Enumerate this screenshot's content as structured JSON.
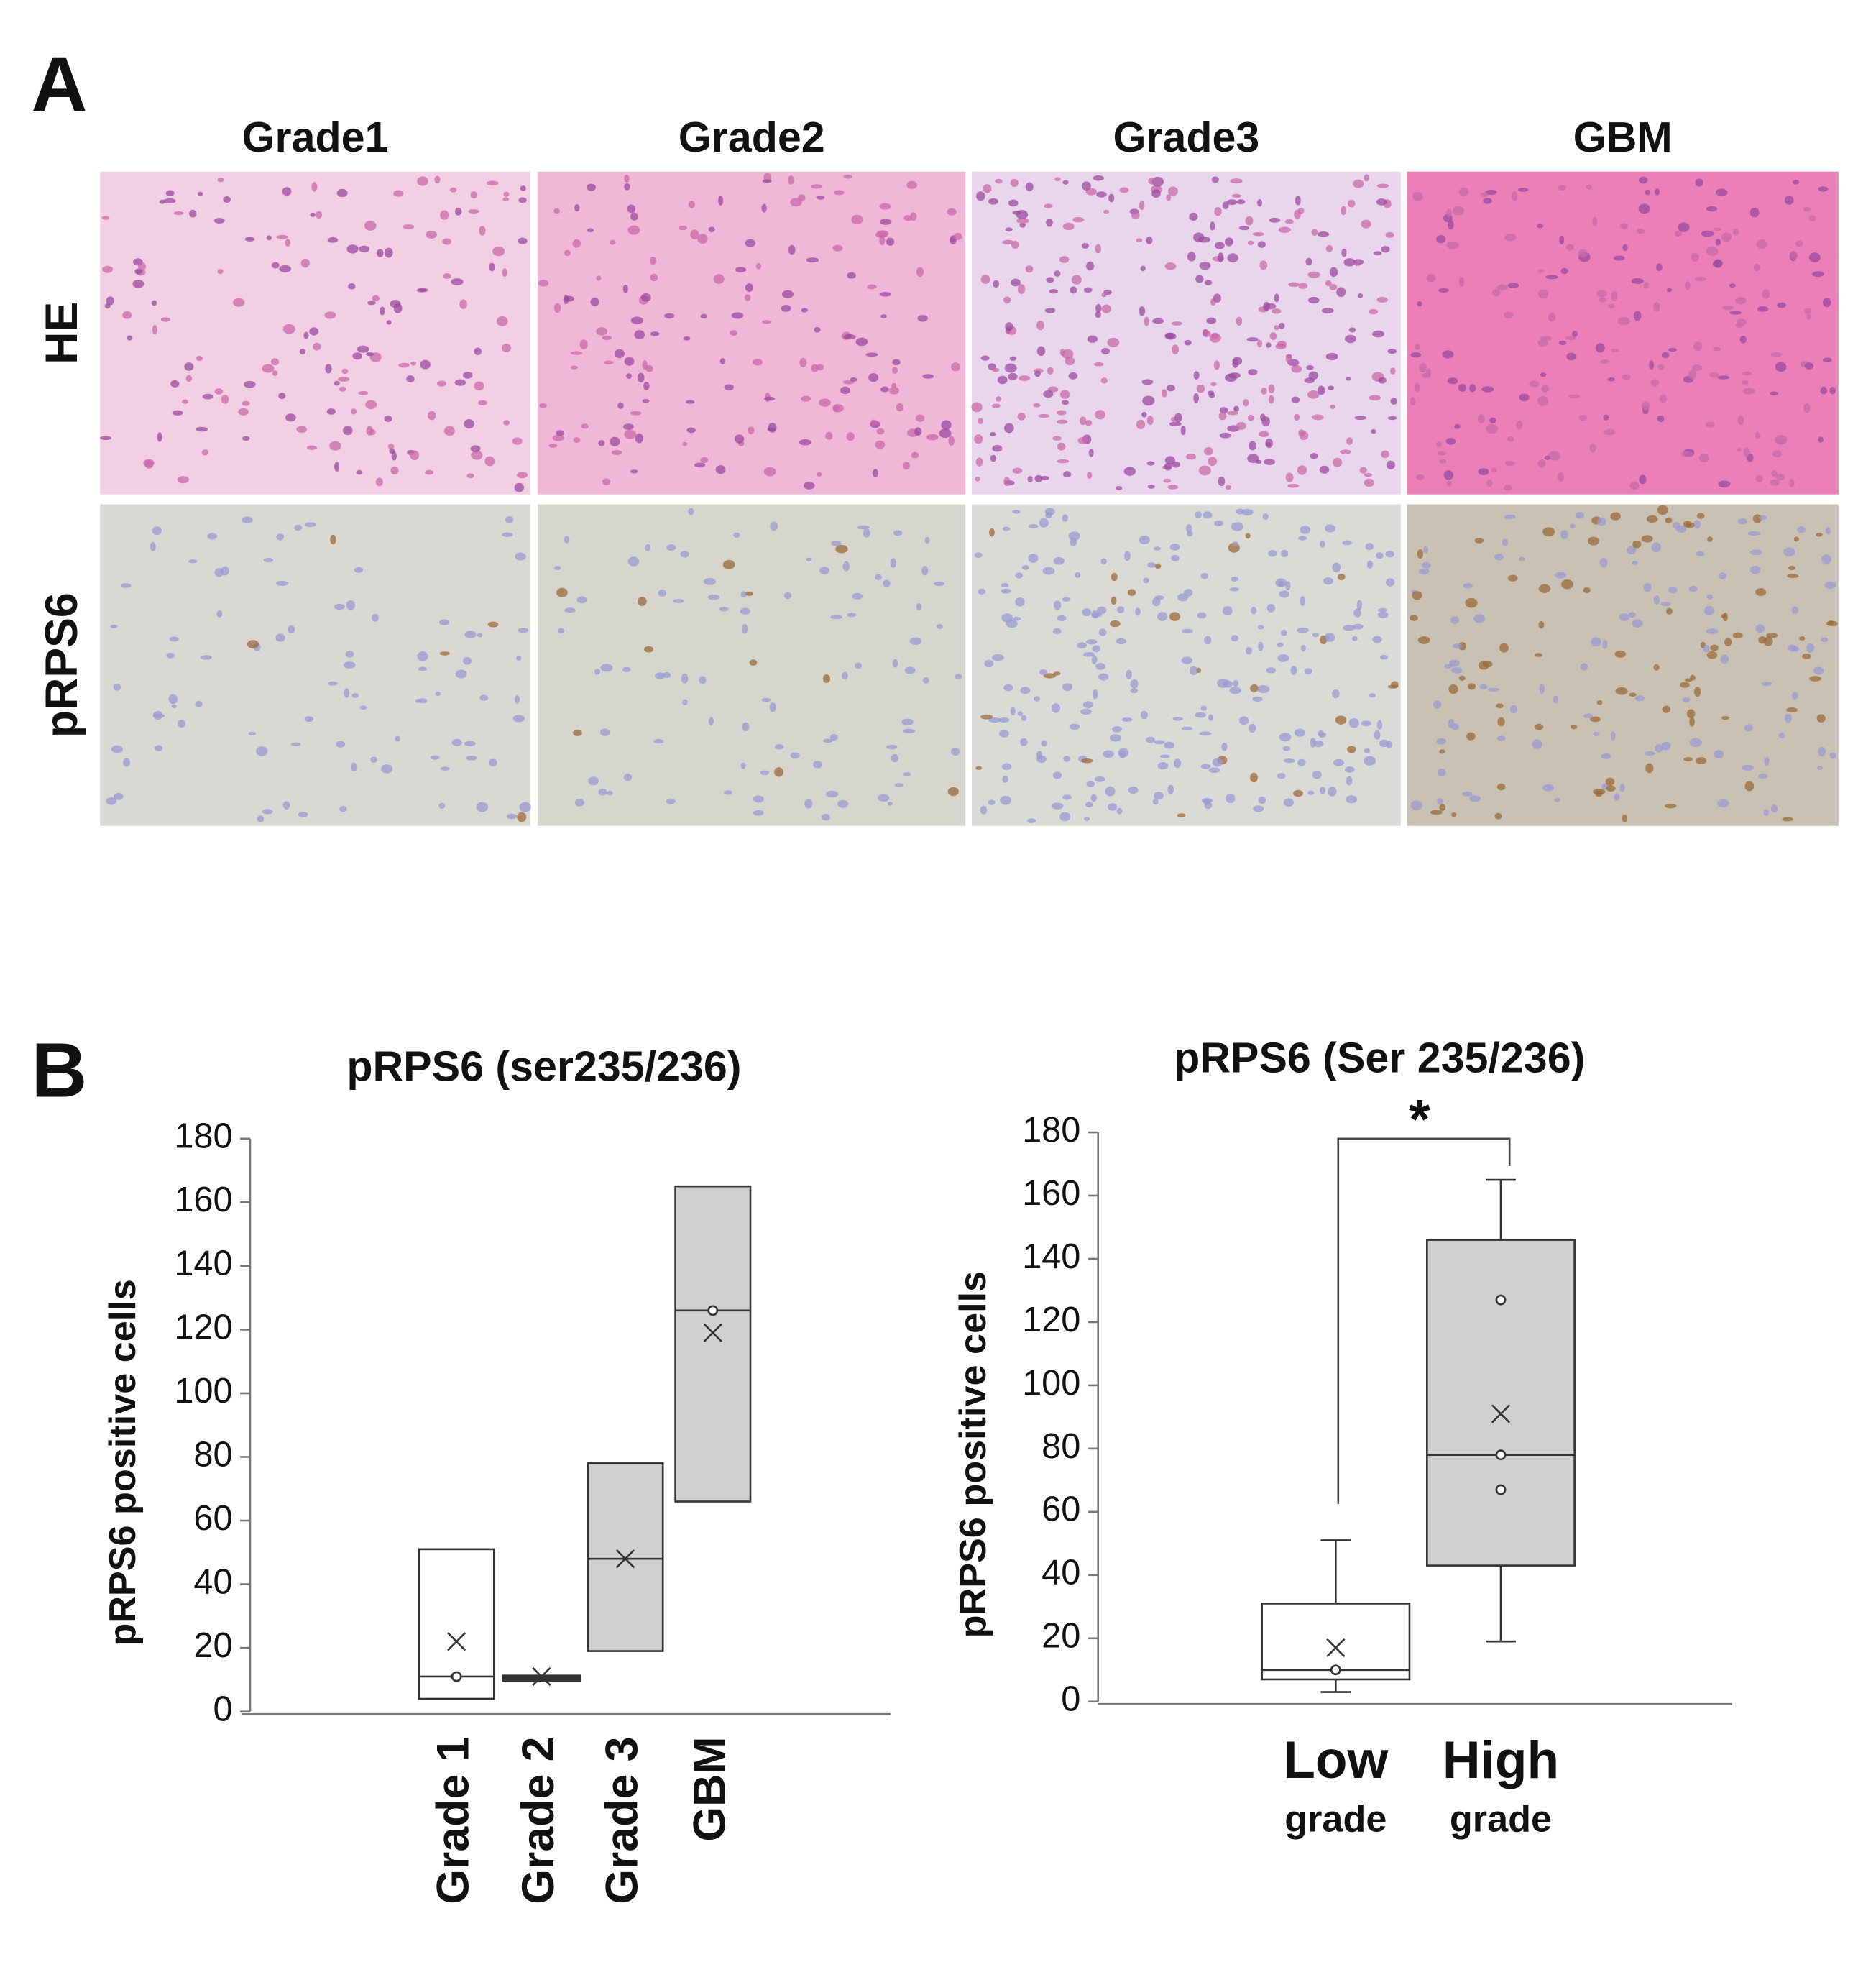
{
  "figure": {
    "panel_a": {
      "label": "A",
      "columns": [
        "Grade1",
        "Grade2",
        "Grade3",
        "GBM"
      ],
      "rows": [
        "HE",
        "pRPS6"
      ]
    },
    "panel_b": {
      "label": "B"
    }
  },
  "chart_data": [
    {
      "type": "box",
      "title": "pRPS6 (ser235/236)",
      "ylabel": "pRPS6 positive cells",
      "categories": [
        "Grade 1",
        "Grade 2",
        "Grade 3",
        "GBM"
      ],
      "colors": [
        "#ffffff",
        "#d0d0d0",
        "#d0d0d0",
        "#d0d0d0"
      ],
      "boxes": [
        {
          "q1": 4,
          "median": 11,
          "q3": 51,
          "mean": 22,
          "points": [
            11
          ]
        },
        {
          "q1": 10,
          "median": 11,
          "q3": 11,
          "mean": 11,
          "points": []
        },
        {
          "q1": 19,
          "median": 48,
          "q3": 78,
          "mean": 48,
          "points": []
        },
        {
          "q1": 66,
          "median": 126,
          "q3": 165,
          "mean": 119,
          "points": [
            126
          ]
        }
      ],
      "ylim": [
        0,
        180
      ],
      "yticks": [
        0,
        20,
        40,
        60,
        80,
        100,
        120,
        140,
        160,
        180
      ]
    },
    {
      "type": "box",
      "title": "pRPS6 (Ser 235/236)",
      "ylabel": "pRPS6 positive cells",
      "categories": [
        "Low grade",
        "High grade"
      ],
      "colors": [
        "#ffffff",
        "#d0d0d0"
      ],
      "boxes": [
        {
          "whisker_low": 3,
          "q1": 7,
          "median": 10,
          "q3": 31,
          "whisker_high": 51,
          "mean": 17,
          "points": [
            10
          ]
        },
        {
          "whisker_low": 19,
          "q1": 43,
          "median": 78,
          "q3": 146,
          "whisker_high": 165,
          "mean": 91,
          "points": [
            127,
            78,
            67
          ]
        }
      ],
      "ylim": [
        0,
        180
      ],
      "yticks": [
        0,
        20,
        40,
        60,
        80,
        100,
        120,
        140,
        160,
        180
      ],
      "annotation": "*"
    }
  ]
}
